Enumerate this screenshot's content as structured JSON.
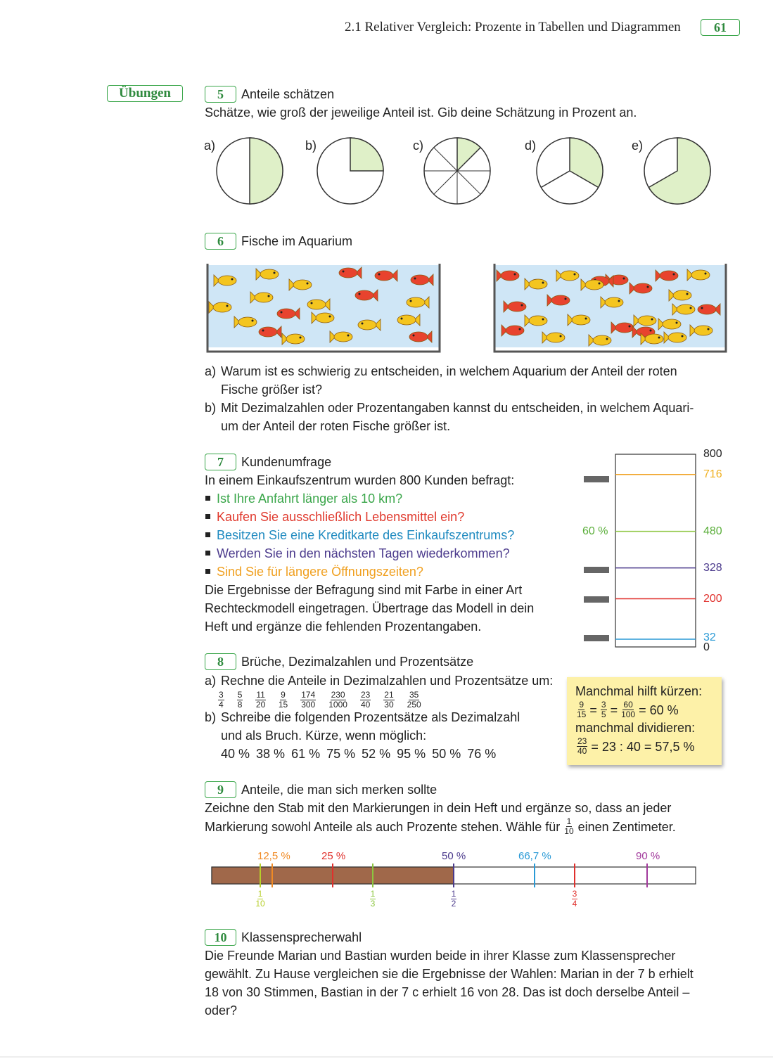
{
  "header": {
    "section": "2.1 Relativer Vergleich: Prozente in Tabellen und Diagrammen",
    "page": "61"
  },
  "sidebar": {
    "label": "Übungen"
  },
  "exercises": [
    {
      "number": "5",
      "title": "Anteile schätzen",
      "text": "Schätze, wie groß der jeweilige Anteil ist. Gib deine Schätzung in Prozent an.",
      "pie_labels": [
        "a)",
        "b)",
        "c)",
        "d)",
        "e)"
      ]
    },
    {
      "number": "6",
      "title": "Fische im Aquarium",
      "tasks": [
        {
          "label": "a)",
          "lines": [
            "Warum ist es schwierig zu entscheiden, in welchem Aquarium der Anteil der roten",
            "Fische größer ist?"
          ]
        },
        {
          "label": "b)",
          "lines": [
            "Mit Dezimalzahlen oder Prozentangaben kannst du entscheiden, in welchem Aquari-",
            "um der Anteil der roten Fische größer ist."
          ]
        }
      ]
    },
    {
      "number": "7",
      "title": "Kundenumfrage",
      "intro": "In einem Einkaufszentrum wurden 800 Kunden befragt:",
      "questions": [
        "Ist Ihre Anfahrt länger als 10 km?",
        "Kaufen Sie ausschließlich Lebensmittel ein?",
        "Besitzen Sie eine Kreditkarte des Einkaufszentrums?",
        "Werden Sie in den nächsten Tagen wiederkommen?",
        "Sind Sie für längere Öffnungszeiten?"
      ],
      "outro": [
        "Die Ergebnisse der Befragung sind mit Farbe in einer Art",
        "Rechteckmodell eingetragen. Übertrage das Modell in dein",
        "Heft und ergänze die fehlenden Prozentangaben."
      ],
      "model": {
        "levels": [
          800,
          716,
          480,
          328,
          200,
          32,
          0
        ],
        "percent_label": "60 %"
      }
    },
    {
      "number": "8",
      "title": "Brüche, Dezimalzahlen und Prozentsätze",
      "a": {
        "label": "a)",
        "text": "Rechne die Anteile in Dezimalzahlen und Prozentsätze um:",
        "fractions": [
          {
            "num": "3",
            "den": "4"
          },
          {
            "num": "5",
            "den": "8"
          },
          {
            "num": "11",
            "den": "20"
          },
          {
            "num": "9",
            "den": "15"
          },
          {
            "num": "174",
            "den": "300"
          },
          {
            "num": "230",
            "den": "1000"
          },
          {
            "num": "23",
            "den": "40"
          },
          {
            "num": "21",
            "den": "30"
          },
          {
            "num": "35",
            "den": "250"
          }
        ]
      },
      "b": {
        "label": "b)",
        "lines": [
          "Schreibe die folgenden Prozentsätze als Dezimalzahl",
          "und als Bruch. Kürze, wenn möglich:"
        ],
        "percents": [
          "40 %",
          "38 %",
          "61 %",
          "75 %",
          "52 %",
          "95 %",
          "50 %",
          "76 %"
        ]
      },
      "tip": {
        "line1": "Manchmal hilft kürzen:",
        "eq1": [
          {
            "num": "9",
            "den": "15"
          },
          "=",
          {
            "num": "3",
            "den": "5"
          },
          "=",
          {
            "num": "60",
            "den": "100"
          },
          "= 60 %"
        ],
        "line2": "manchmal dividieren:",
        "eq2": [
          {
            "num": "23",
            "den": "40"
          },
          "= 23 : 40 = 57,5 %"
        ]
      }
    },
    {
      "number": "9",
      "title": "Anteile, die man sich merken sollte",
      "line1": "Zeichne den Stab mit den Markierungen in dein Heft und ergänze so, dass an jeder",
      "line2_before": "Markierung sowohl Anteile als auch Prozente stehen. Wähle für",
      "line2_fraction": {
        "num": "1",
        "den": "10"
      },
      "line2_after": "einen Zentimeter.",
      "bar_top_labels": [
        "12,5 %",
        "25 %",
        "50 %",
        "66,7 %",
        "90 %"
      ],
      "bar_bottom_fractions": [
        {
          "num": "1",
          "den": "10"
        },
        {
          "num": "1",
          "den": "3"
        },
        {
          "num": "1",
          "den": "2"
        },
        {
          "num": "3",
          "den": "4"
        }
      ]
    },
    {
      "number": "10",
      "title": "Klassensprecherwahl",
      "lines": [
        "Die Freunde Marian und Bastian wurden beide in ihrer Klasse zum Klassensprecher",
        "gewählt. Zu Hause vergleichen sie die Ergebnisse der Wahlen: Marian in der 7 b erhielt",
        "18 von 30 Stimmen, Bastian in der 7 c erhielt 16 von 28. Das ist doch derselbe Anteil –",
        "oder?"
      ]
    }
  ]
}
